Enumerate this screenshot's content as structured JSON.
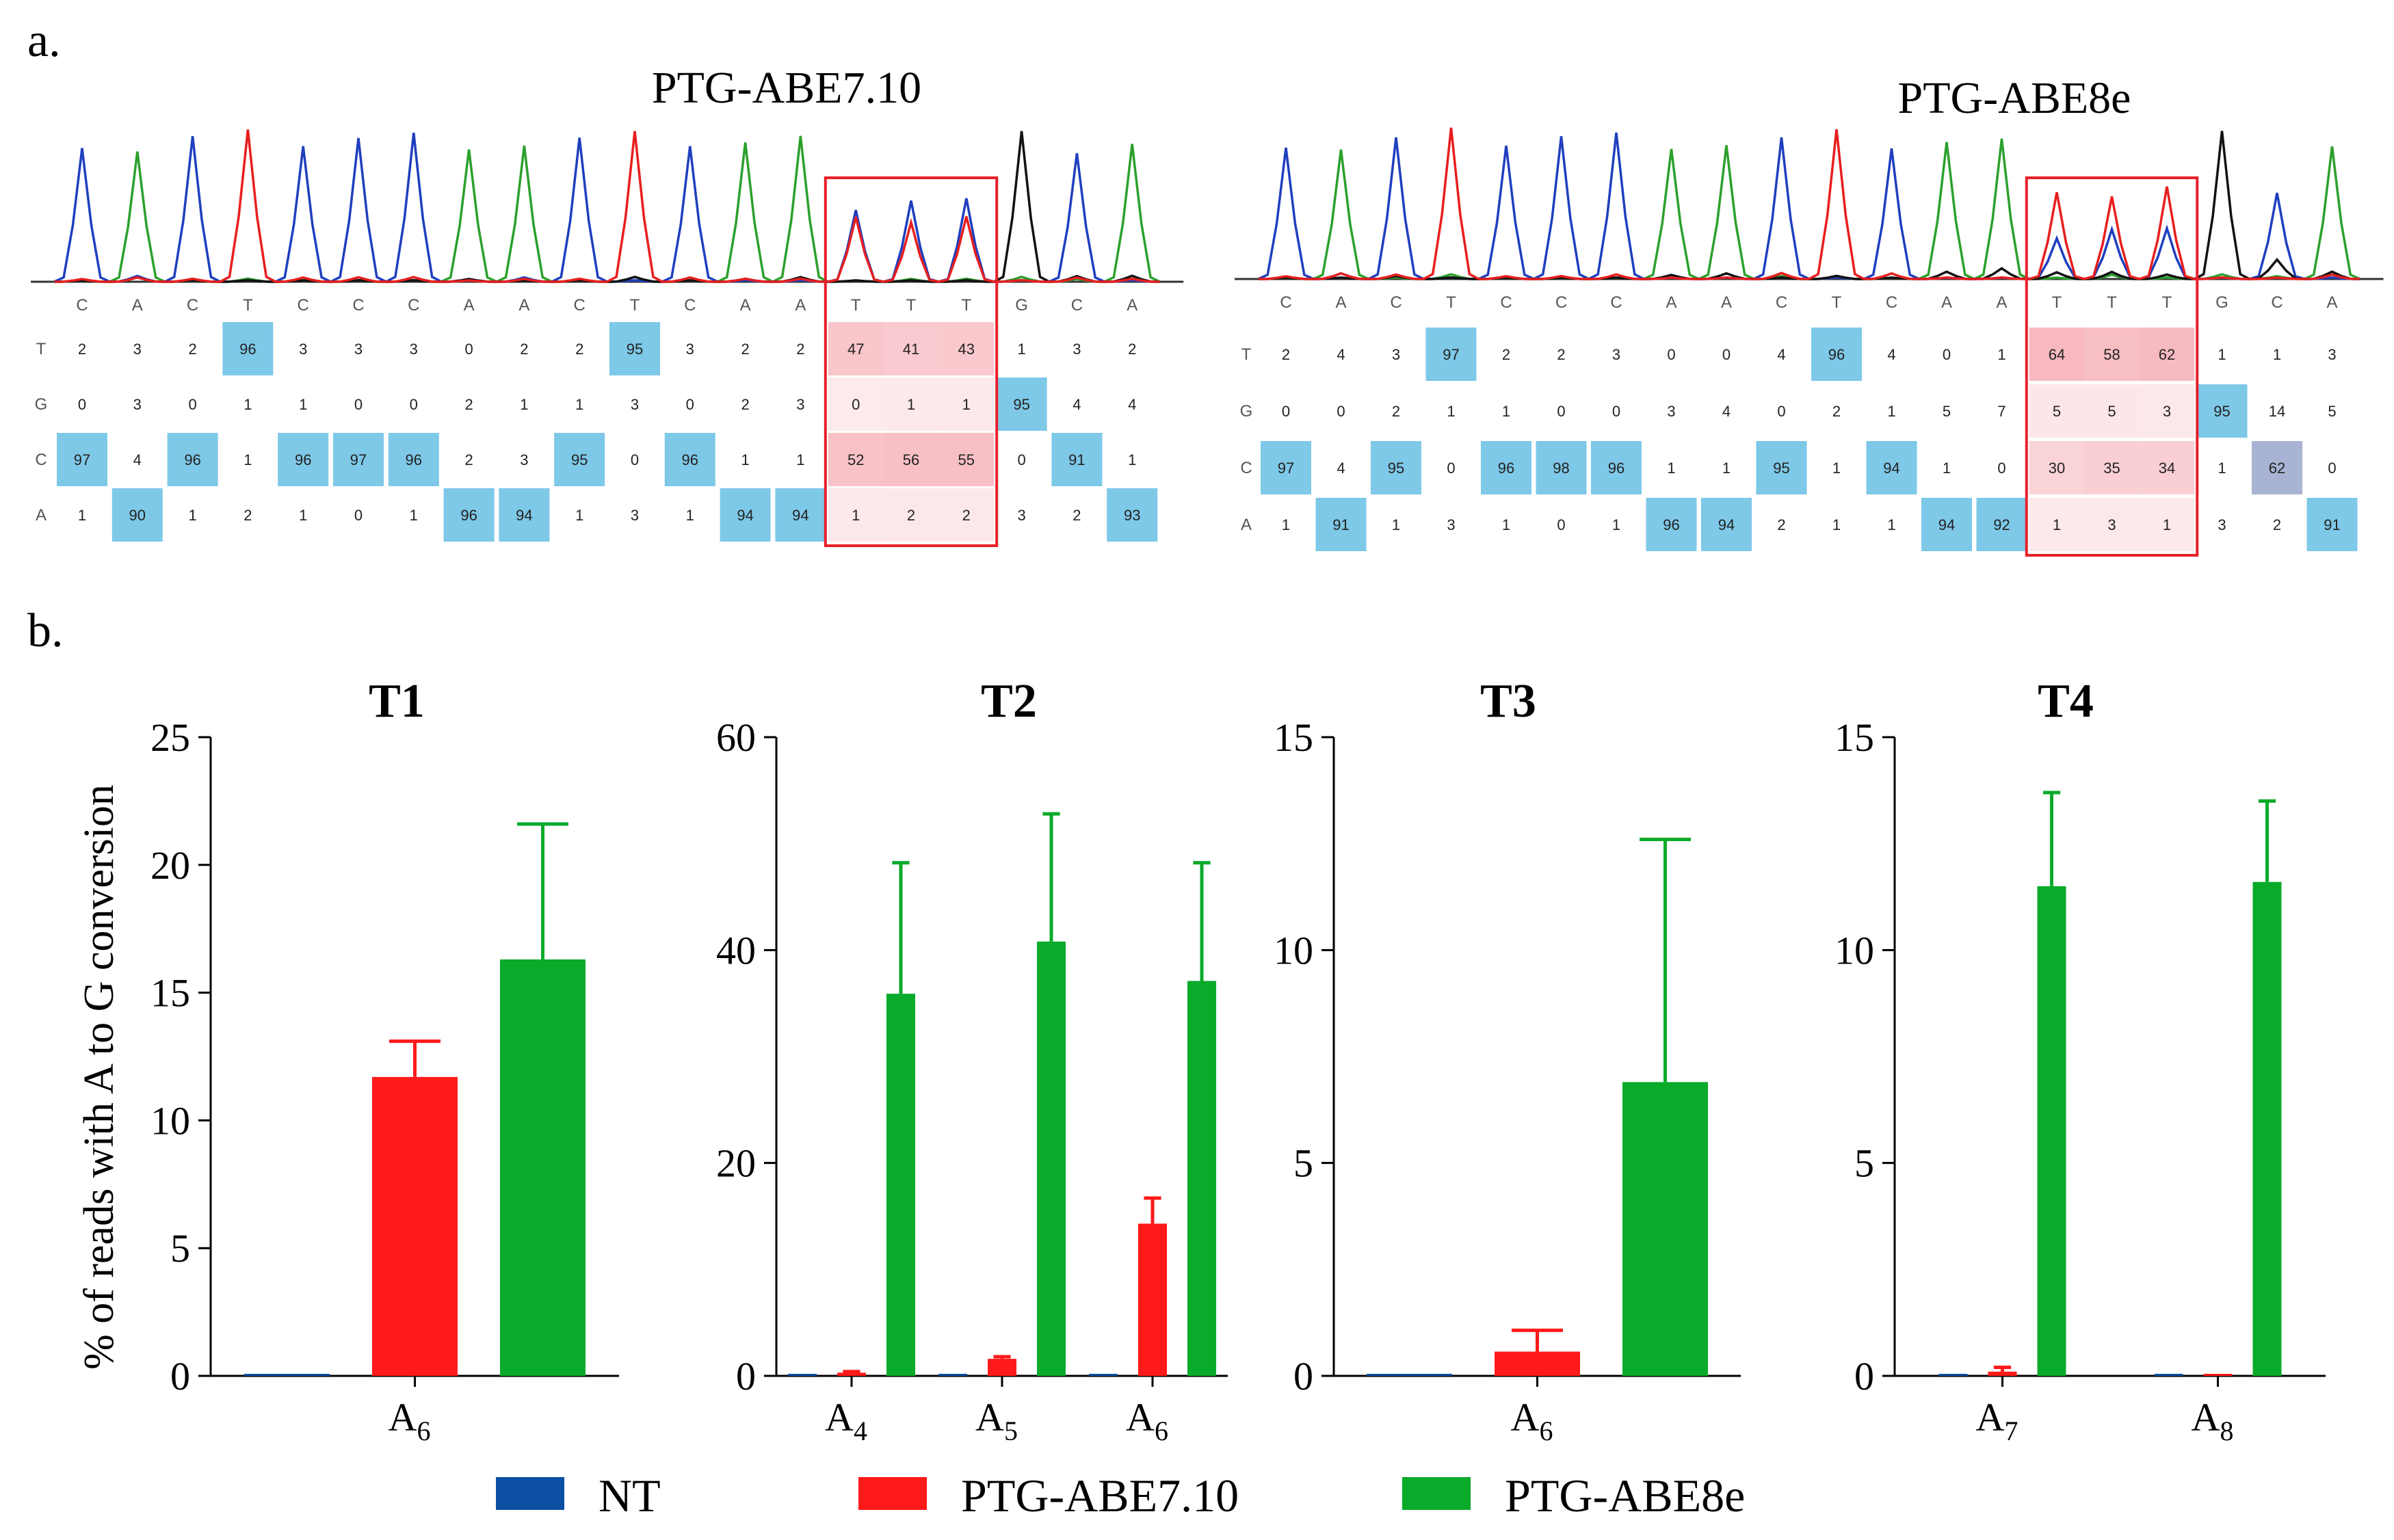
{
  "panel_a": {
    "label": "a.",
    "chromatograms": [
      {
        "title": "PTG-ABE7.10",
        "bases": [
          "C",
          "A",
          "C",
          "T",
          "C",
          "C",
          "C",
          "A",
          "A",
          "C",
          "T",
          "C",
          "A",
          "A",
          "T",
          "T",
          "T",
          "G",
          "C",
          "A"
        ],
        "rows": [
          {
            "base": "T",
            "values": [
              "2",
              "3",
              "2",
              "96",
              "3",
              "3",
              "3",
              "0",
              "2",
              "2",
              "95",
              "3",
              "2",
              "2",
              "47",
              "41",
              "43",
              "1",
              "3",
              "2"
            ]
          },
          {
            "base": "G",
            "values": [
              "0",
              "3",
              "0",
              "1",
              "1",
              "0",
              "0",
              "2",
              "1",
              "1",
              "3",
              "0",
              "2",
              "3",
              "0",
              "1",
              "1",
              "95",
              "4",
              "4"
            ]
          },
          {
            "base": "C",
            "values": [
              "97",
              "4",
              "96",
              "1",
              "96",
              "97",
              "96",
              "2",
              "3",
              "95",
              "0",
              "96",
              "1",
              "1",
              "52",
              "56",
              "55",
              "0",
              "91",
              "1"
            ]
          },
          {
            "base": "A",
            "values": [
              "1",
              "90",
              "1",
              "2",
              "1",
              "0",
              "1",
              "96",
              "94",
              "1",
              "3",
              "1",
              "94",
              "94",
              "1",
              "2",
              "2",
              "3",
              "2",
              "93"
            ]
          }
        ],
        "highlight_cols": [
          14,
          15,
          16
        ]
      },
      {
        "title": "PTG-ABE8e",
        "bases": [
          "C",
          "A",
          "C",
          "T",
          "C",
          "C",
          "C",
          "A",
          "A",
          "C",
          "T",
          "C",
          "A",
          "A",
          "T",
          "T",
          "T",
          "G",
          "C",
          "A"
        ],
        "rows": [
          {
            "base": "T",
            "values": [
              "2",
              "4",
              "3",
              "97",
              "2",
              "2",
              "3",
              "0",
              "0",
              "4",
              "96",
              "4",
              "0",
              "1",
              "64",
              "58",
              "62",
              "1",
              "1",
              "3"
            ]
          },
          {
            "base": "G",
            "values": [
              "0",
              "0",
              "2",
              "1",
              "1",
              "0",
              "0",
              "3",
              "4",
              "0",
              "2",
              "1",
              "5",
              "7",
              "5",
              "5",
              "3",
              "95",
              "14",
              "5"
            ]
          },
          {
            "base": "C",
            "values": [
              "97",
              "4",
              "95",
              "0",
              "96",
              "98",
              "96",
              "1",
              "1",
              "95",
              "1",
              "94",
              "1",
              "0",
              "30",
              "35",
              "34",
              "1",
              "62",
              "0"
            ]
          },
          {
            "base": "A",
            "values": [
              "1",
              "91",
              "1",
              "3",
              "1",
              "0",
              "1",
              "96",
              "94",
              "2",
              "1",
              "1",
              "94",
              "92",
              "1",
              "3",
              "1",
              "3",
              "2",
              "91"
            ]
          }
        ],
        "highlight_cols": [
          14,
          15,
          16
        ]
      }
    ]
  },
  "panel_b": {
    "label": "b."
  },
  "colors": {
    "NT": "#0b4ea2",
    "PTG-ABE7.10": "#ff1a1a",
    "PTG-ABE8e": "#0aaa2a",
    "cell_blue": "#7ec8e8",
    "cell_pink": "#f5aab2",
    "trace_A": "#2ca02c",
    "trace_C": "#1f3fbf",
    "trace_G": "#111111",
    "trace_T": "#e81e1e"
  },
  "chart_data": [
    {
      "type": "bar",
      "title": "T1",
      "ylabel": "% of reads with A to G conversion",
      "ylim": [
        0,
        25
      ],
      "yticks": [
        "0",
        "5",
        "10",
        "15",
        "20",
        "25"
      ],
      "categories": [
        {
          "base": "A",
          "sub": "6"
        }
      ],
      "series": [
        {
          "name": "NT",
          "values": [
            0.05
          ],
          "errors": [
            0
          ]
        },
        {
          "name": "PTG-ABE7.10",
          "values": [
            11.7
          ],
          "errors": [
            1.4
          ]
        },
        {
          "name": "PTG-ABE8e",
          "values": [
            16.3
          ],
          "errors": [
            5.3
          ]
        }
      ]
    },
    {
      "type": "bar",
      "title": "T2",
      "ylim": [
        0,
        60
      ],
      "yticks": [
        "0",
        "20",
        "40",
        "60"
      ],
      "categories": [
        {
          "base": "A",
          "sub": "4"
        },
        {
          "base": "A",
          "sub": "5"
        },
        {
          "base": "A",
          "sub": "6"
        }
      ],
      "series": [
        {
          "name": "NT",
          "values": [
            0.1,
            0.1,
            0.1
          ],
          "errors": [
            0,
            0,
            0
          ]
        },
        {
          "name": "PTG-ABE7.10",
          "values": [
            0.3,
            1.6,
            14.3
          ],
          "errors": [
            0.1,
            0.2,
            2.4
          ]
        },
        {
          "name": "PTG-ABE8e",
          "values": [
            35.9,
            40.8,
            37.1
          ],
          "errors": [
            12.3,
            12.0,
            11.1
          ]
        }
      ]
    },
    {
      "type": "bar",
      "title": "T3",
      "ylim": [
        0,
        15
      ],
      "yticks": [
        "0",
        "5",
        "10",
        "15"
      ],
      "categories": [
        {
          "base": "A",
          "sub": "6"
        }
      ],
      "series": [
        {
          "name": "NT",
          "values": [
            0.02
          ],
          "errors": [
            0
          ]
        },
        {
          "name": "PTG-ABE7.10",
          "values": [
            0.57
          ],
          "errors": [
            0.5
          ]
        },
        {
          "name": "PTG-ABE8e",
          "values": [
            6.9
          ],
          "errors": [
            5.7
          ]
        }
      ]
    },
    {
      "type": "bar",
      "title": "T4",
      "ylim": [
        0,
        15
      ],
      "yticks": [
        "0",
        "5",
        "10",
        "15"
      ],
      "categories": [
        {
          "base": "A",
          "sub": "7"
        },
        {
          "base": "A",
          "sub": "8"
        }
      ],
      "series": [
        {
          "name": "NT",
          "values": [
            0.02,
            0.0
          ],
          "errors": [
            0,
            0
          ]
        },
        {
          "name": "PTG-ABE7.10",
          "values": [
            0.1,
            0.02
          ],
          "errors": [
            0.1,
            0
          ]
        },
        {
          "name": "PTG-ABE8e",
          "values": [
            11.5,
            11.6
          ],
          "errors": [
            2.2,
            1.9
          ]
        }
      ]
    }
  ],
  "legend": {
    "items": [
      {
        "name": "NT",
        "label": "NT"
      },
      {
        "name": "PTG-ABE7.10",
        "label": "PTG-ABE7.10"
      },
      {
        "name": "PTG-ABE8e",
        "label": "PTG-ABE8e"
      }
    ]
  }
}
